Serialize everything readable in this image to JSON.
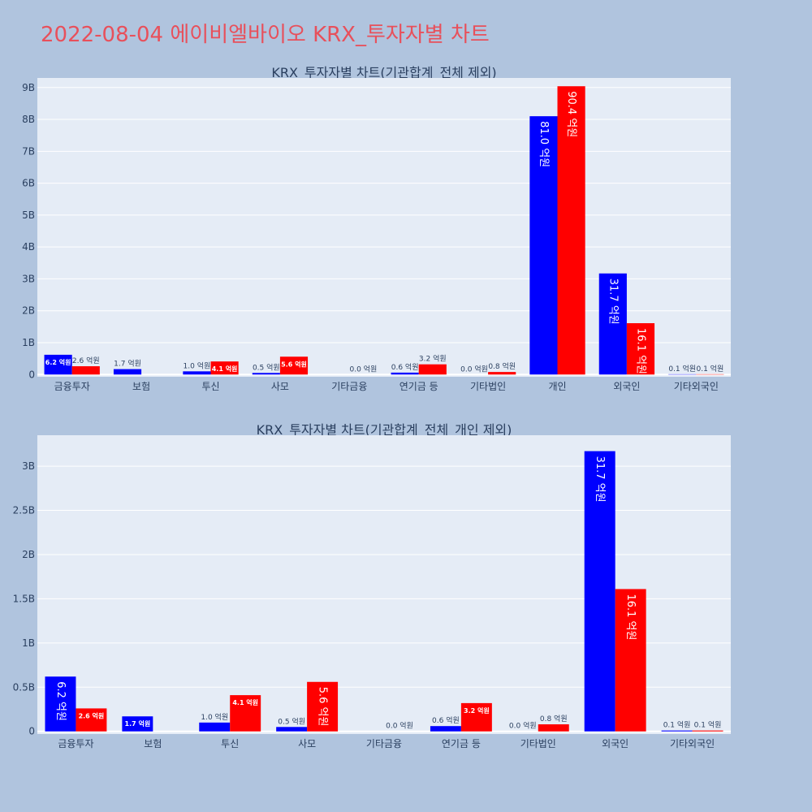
{
  "page_title": "2022-08-04 에이비엘바이오 KRX_투자자별 차트",
  "colors": {
    "buy": "#0000ff",
    "sell": "#ff0000",
    "title": "#e8505b",
    "plot_bg": "#e5ecf6",
    "page_bg": "#b0c4de"
  },
  "chart_data": [
    {
      "type": "bar",
      "title": "KRX_투자자별 차트(기관합계_전체 제외)",
      "categories": [
        "금융투자",
        "보험",
        "투신",
        "사모",
        "기타금융",
        "연기금 등",
        "기타법인",
        "개인",
        "외국인",
        "기타외국인"
      ],
      "series": [
        {
          "values": [
            0.62,
            0.17,
            0.1,
            0.05,
            0.0,
            0.06,
            0.0,
            8.1,
            3.17,
            0.01
          ],
          "labels": [
            "6.2 억원",
            "1.7 억원",
            "1.0 억원",
            "0.5 억원",
            "",
            "0.6 억원",
            "0.0 억원",
            "81.0 억원",
            "31.7 억원",
            "0.1 억원"
          ]
        },
        {
          "values": [
            0.26,
            0.0,
            0.41,
            0.56,
            0.0,
            0.32,
            0.08,
            9.04,
            1.61,
            0.01
          ],
          "labels": [
            "2.6 억원",
            "",
            "4.1 억원",
            "5.6 억원",
            "0.0 억원",
            "3.2 억원",
            "0.8 억원",
            "90.4 억원",
            "16.1 억원",
            "0.1 억원"
          ]
        }
      ],
      "yticks": [
        "0",
        "1B",
        "2B",
        "3B",
        "4B",
        "5B",
        "6B",
        "7B",
        "8B",
        "9B"
      ],
      "ylim": [
        -0.07,
        9.3
      ]
    },
    {
      "type": "bar",
      "title": "KRX_투자자별 차트(기관합계_전체_개인 제외)",
      "categories": [
        "금융투자",
        "보험",
        "투신",
        "사모",
        "기타금융",
        "연기금 등",
        "기타법인",
        "외국인",
        "기타외국인"
      ],
      "series": [
        {
          "values": [
            0.62,
            0.17,
            0.1,
            0.05,
            0.0,
            0.06,
            0.0,
            3.17,
            0.01
          ],
          "labels": [
            "6.2 억원",
            "1.7 억원",
            "1.0 억원",
            "0.5 억원",
            "",
            "0.6 억원",
            "0.0 억원",
            "31.7 억원",
            "0.1 억원"
          ]
        },
        {
          "values": [
            0.26,
            0.0,
            0.41,
            0.56,
            0.0,
            0.32,
            0.08,
            1.61,
            0.01
          ],
          "labels": [
            "2.6 억원",
            "",
            "4.1 억원",
            "5.6 억원",
            "0.0 억원",
            "3.2 억원",
            "0.8 억원",
            "16.1 억원",
            "0.1 억원"
          ]
        }
      ],
      "yticks": [
        "0",
        "0.5B",
        "1B",
        "1.5B",
        "2B",
        "2.5B",
        "3B"
      ],
      "ylim": [
        -0.03,
        3.35
      ]
    }
  ]
}
